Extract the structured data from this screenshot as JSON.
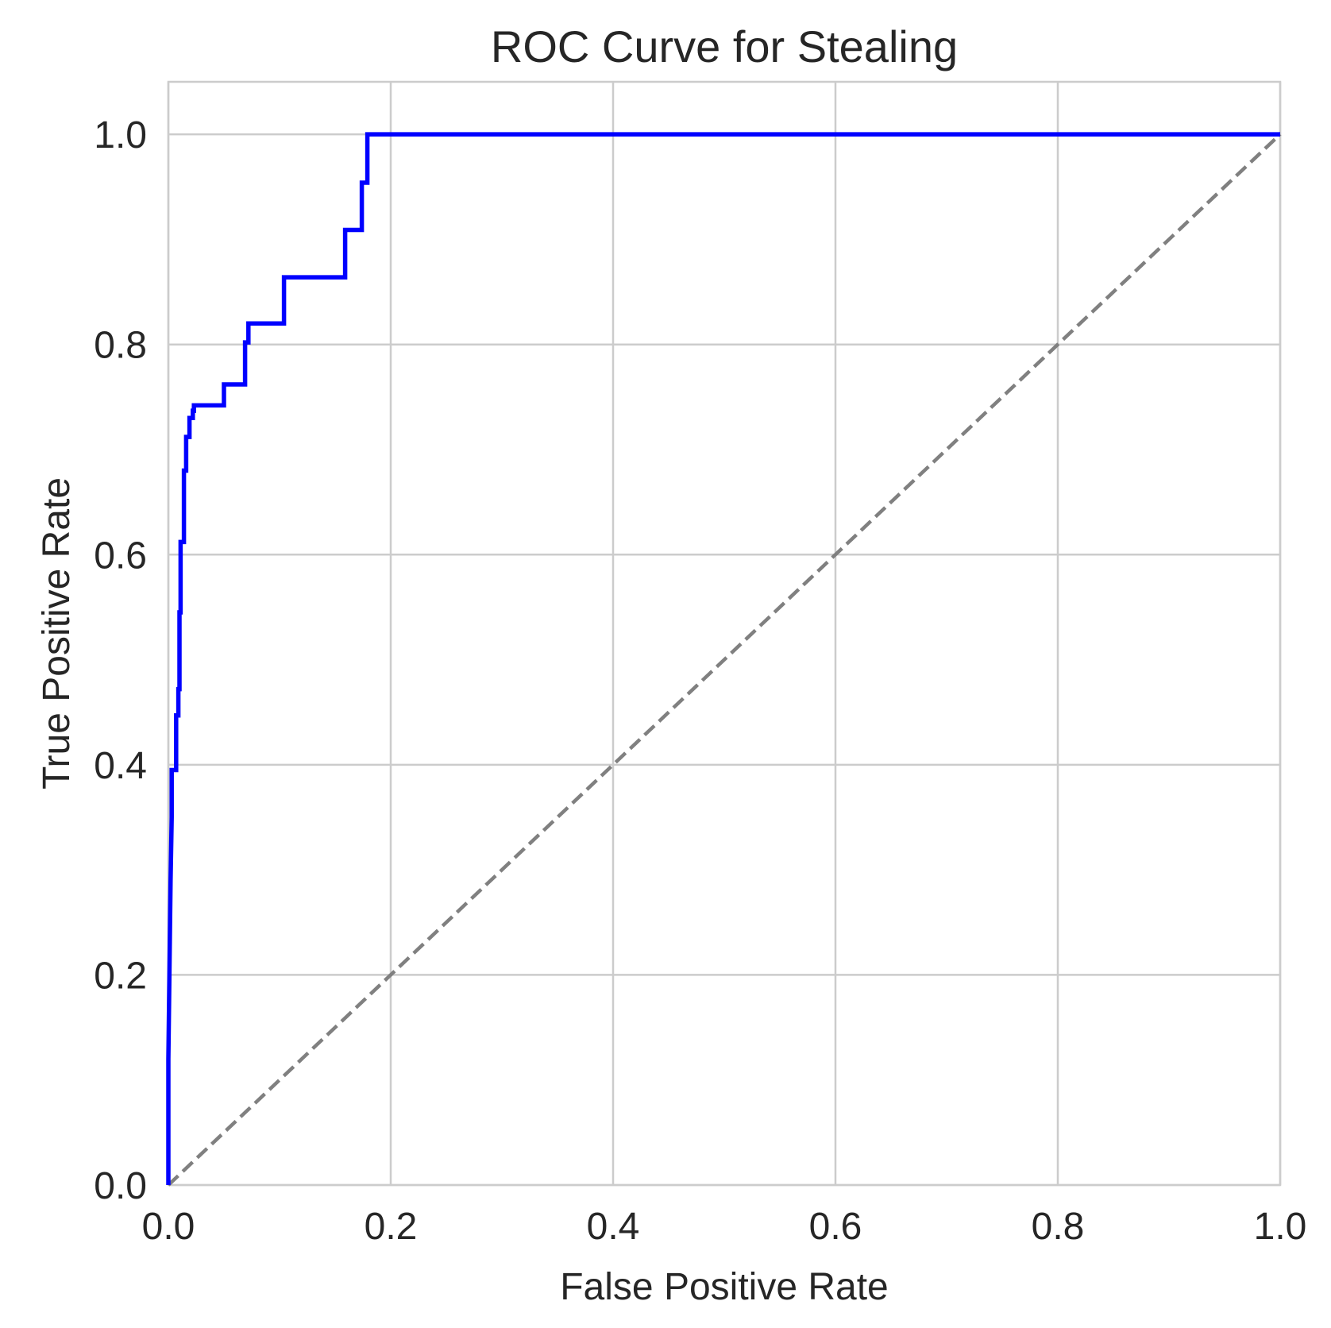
{
  "chart_data": {
    "type": "line",
    "title": "ROC Curve for Stealing",
    "xlabel": "False Positive Rate",
    "ylabel": "True Positive Rate",
    "xlim": [
      0.0,
      1.0
    ],
    "ylim": [
      0.0,
      1.05
    ],
    "xticks": [
      "0.0",
      "0.2",
      "0.4",
      "0.6",
      "0.8",
      "1.0"
    ],
    "yticks": [
      "0.0",
      "0.2",
      "0.4",
      "0.6",
      "0.8",
      "1.0"
    ],
    "grid": true,
    "legend": "none",
    "series": [
      {
        "color": "#0000ff",
        "style": "solid",
        "x": [
          0.0,
          0.0,
          0.002,
          0.003,
          0.003,
          0.007,
          0.007,
          0.009,
          0.009,
          0.01,
          0.01,
          0.011,
          0.011,
          0.014,
          0.014,
          0.016,
          0.016,
          0.019,
          0.019,
          0.022,
          0.022,
          0.023,
          0.023,
          0.05,
          0.05,
          0.069,
          0.069,
          0.072,
          0.072,
          0.104,
          0.104,
          0.159,
          0.159,
          0.174,
          0.174,
          0.179,
          0.179,
          1.0
        ],
        "y": [
          0.0,
          0.12,
          0.29,
          0.35,
          0.395,
          0.395,
          0.447,
          0.447,
          0.472,
          0.472,
          0.545,
          0.545,
          0.612,
          0.612,
          0.68,
          0.68,
          0.712,
          0.712,
          0.73,
          0.73,
          0.737,
          0.737,
          0.742,
          0.742,
          0.762,
          0.762,
          0.802,
          0.802,
          0.82,
          0.82,
          0.864,
          0.864,
          0.909,
          0.909,
          0.954,
          0.954,
          1.0,
          1.0
        ]
      },
      {
        "color": "#808080",
        "style": "dashed",
        "x": [
          0.0,
          1.0
        ],
        "y": [
          0.0,
          1.0
        ]
      }
    ]
  }
}
